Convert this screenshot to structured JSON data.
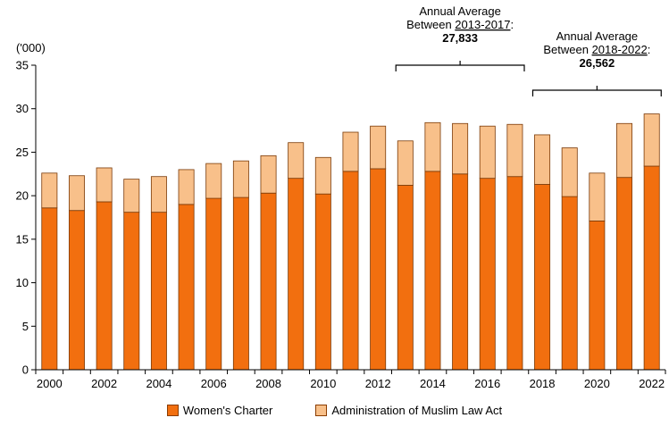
{
  "chart_data": {
    "type": "bar",
    "stacked": true,
    "unit_label": "('000)",
    "categories": [
      "2000",
      "2001",
      "2002",
      "2003",
      "2004",
      "2005",
      "2006",
      "2007",
      "2008",
      "2009",
      "2010",
      "2011",
      "2012",
      "2013",
      "2014",
      "2015",
      "2016",
      "2017",
      "2018",
      "2019",
      "2020",
      "2021",
      "2022"
    ],
    "x_tick_labels": [
      "2000",
      "2002",
      "2004",
      "2006",
      "2008",
      "2010",
      "2012",
      "2014",
      "2016",
      "2018",
      "2020",
      "2022"
    ],
    "ylim": [
      0,
      35
    ],
    "y_ticks": [
      0,
      5,
      10,
      15,
      20,
      25,
      30,
      35
    ],
    "grid": false,
    "legend_position": "bottom",
    "series": [
      {
        "name": "Women's Charter",
        "color": "#f26f0f",
        "values": [
          18.6,
          18.3,
          19.3,
          18.1,
          18.1,
          19.0,
          19.7,
          19.8,
          20.3,
          22.0,
          20.2,
          22.8,
          23.1,
          21.2,
          22.8,
          22.5,
          22.0,
          22.2,
          21.3,
          19.9,
          17.1,
          22.1,
          23.4
        ]
      },
      {
        "name": "Administration of Muslim Law Act",
        "color": "#f8c08a",
        "values": [
          4.0,
          4.0,
          3.9,
          3.8,
          4.1,
          4.0,
          4.0,
          4.2,
          4.3,
          4.1,
          4.2,
          4.5,
          4.9,
          5.1,
          5.6,
          5.8,
          6.0,
          6.0,
          5.7,
          5.6,
          5.5,
          6.2,
          6.0
        ]
      }
    ],
    "annotations": [
      {
        "line1": "Annual Average",
        "line2_prefix": "Between ",
        "period": "2013-2017",
        "line2_suffix": ":",
        "value": "27,833",
        "from": "2013",
        "to": "2017"
      },
      {
        "line1": "Annual Average",
        "line2_prefix": "Between ",
        "period": "2018-2022",
        "line2_suffix": ":",
        "value": "26,562",
        "from": "2018",
        "to": "2022"
      }
    ]
  }
}
